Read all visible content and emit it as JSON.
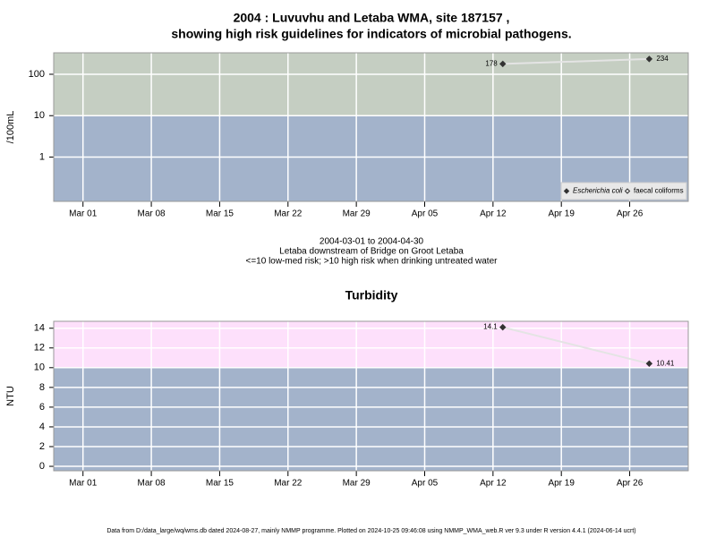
{
  "chart_data": [
    {
      "type": "line",
      "title": [
        "2004 : Luvuvhu and Letaba WMA, site 187157 ,",
        "showing high risk guidelines for indicators of microbial pathogens."
      ],
      "ylabel": "/100mL",
      "xlabel": [
        "2004-03-01 to 2004-04-30",
        "Letaba downstream of Bridge on Groot Letaba",
        "<=10 low-med risk; >10 high risk when drinking untreated water"
      ],
      "log_y": true,
      "grid": true,
      "xlim": [
        "2004-02-27",
        "2004-05-02"
      ],
      "xticks": [
        {
          "value": "2004-03-01",
          "label": "Mar 01"
        },
        {
          "value": "2004-03-08",
          "label": "Mar 08"
        },
        {
          "value": "2004-03-15",
          "label": "Mar 15"
        },
        {
          "value": "2004-03-22",
          "label": "Mar 22"
        },
        {
          "value": "2004-03-29",
          "label": "Mar 29"
        },
        {
          "value": "2004-04-05",
          "label": "Apr 05"
        },
        {
          "value": "2004-04-12",
          "label": "Apr 12"
        },
        {
          "value": "2004-04-19",
          "label": "Apr 19"
        },
        {
          "value": "2004-04-26",
          "label": "Apr 26"
        }
      ],
      "ylim": [
        0.085,
        330
      ],
      "yticks": [
        1,
        10,
        100
      ],
      "bands": [
        {
          "below": 10,
          "color": "#a3b3cb"
        },
        {
          "above": 10,
          "color": "#c5cec2"
        }
      ],
      "x": [
        "2004-04-13",
        "2004-04-28"
      ],
      "series": [
        {
          "name": "Escherichia coli",
          "color": "#333333",
          "marker": "filled",
          "line_color": "#e4e4e4",
          "values": [
            178,
            234
          ]
        },
        {
          "name": "faecal coliforms",
          "color": "#333333",
          "marker": "open",
          "line_color": "#e4e4e4",
          "values": [
            null,
            null
          ]
        }
      ],
      "legend": "lower right"
    },
    {
      "type": "line",
      "title": [
        "Turbidity"
      ],
      "ylabel": "NTU",
      "log_y": false,
      "grid": true,
      "xlim": [
        "2004-02-27",
        "2004-05-02"
      ],
      "xticks": [
        {
          "value": "2004-03-01",
          "label": "Mar 01"
        },
        {
          "value": "2004-03-08",
          "label": "Mar 08"
        },
        {
          "value": "2004-03-15",
          "label": "Mar 15"
        },
        {
          "value": "2004-03-22",
          "label": "Mar 22"
        },
        {
          "value": "2004-03-29",
          "label": "Mar 29"
        },
        {
          "value": "2004-04-05",
          "label": "Apr 05"
        },
        {
          "value": "2004-04-12",
          "label": "Apr 12"
        },
        {
          "value": "2004-04-19",
          "label": "Apr 19"
        },
        {
          "value": "2004-04-26",
          "label": "Apr 26"
        }
      ],
      "ylim": [
        -0.45,
        14.7
      ],
      "yticks": [
        0,
        2,
        4,
        6,
        8,
        10,
        12,
        14
      ],
      "bands": [
        {
          "below": 10,
          "color": "#a3b3cb"
        },
        {
          "above": 10,
          "color": "#fde0fb"
        }
      ],
      "x": [
        "2004-04-13",
        "2004-04-28"
      ],
      "series": [
        {
          "name": "Turbidity",
          "color": "#333333",
          "marker": "filled",
          "line_color": "#e4e4e4",
          "values": [
            14.1,
            10.41
          ]
        }
      ]
    }
  ],
  "footer": "Data from D:/data_large/wq/wms.db dated 2024-08-27, mainly NMMP programme. Plotted on 2024-10-25 09:46:08 using NMMP_WMA_web.R ver 9.3 under R version 4.4.1 (2024-06-14 ucrt)"
}
